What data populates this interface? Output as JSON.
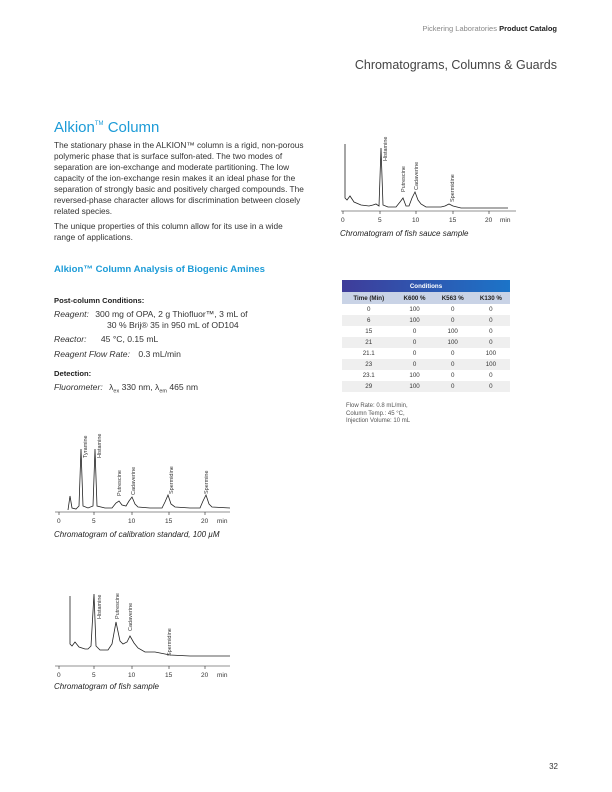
{
  "header": {
    "brand": "Pickering Laboratories",
    "catalog": "Product Catalog",
    "section": "Chromatograms, Columns & Guards"
  },
  "title": {
    "name": "Alkion",
    "tm": "TM",
    "suffix": " Column"
  },
  "intro": [
    "The stationary phase in the ALKION™ column is a rigid, non-porous polymeric phase that is surface sulfon-ated. The two modes of separation are ion-exchange and moderate partitioning. The low capacity of the ion-exchange resin makes it an ideal phase for the separation of strongly basic and positively charged compounds. The reversed-phase character allows for discrimination between closely related species.",
    "The unique properties of this column allow for its use in a wide range of applications."
  ],
  "analysis": {
    "heading": "Alkion™ Column Analysis of Biogenic Amines",
    "postcolumn_label": "Post-column Conditions:",
    "reagent_label": "Reagent:",
    "reagent_line1": "300 mg of OPA, 2 g Thiofluor™, 3 mL of",
    "reagent_line2": "30 % Brij® 35 in 950 mL of OD104",
    "reactor_label": "Reactor:",
    "reactor_value": "45 °C, 0.15 mL",
    "flow_label": "Reagent Flow Rate:",
    "flow_value": "0.3 mL/min",
    "detection_label": "Detection:",
    "fluorometer_label": "Fluorometer:",
    "lambda": "λ",
    "ex_sub": "ex",
    "ex_value": " 330 nm, ",
    "em_sub": "em",
    "em_value": " 465 nm"
  },
  "conditions_table": {
    "caption": "Conditions",
    "headers": [
      "Time (Min)",
      "K600 %",
      "K563 %",
      "K130 %"
    ],
    "rows": [
      [
        "0",
        "100",
        "0",
        "0"
      ],
      [
        "6",
        "100",
        "0",
        "0"
      ],
      [
        "15",
        "0",
        "100",
        "0"
      ],
      [
        "21",
        "0",
        "100",
        "0"
      ],
      [
        "21.1",
        "0",
        "0",
        "100"
      ],
      [
        "23",
        "0",
        "0",
        "100"
      ],
      [
        "23.1",
        "100",
        "0",
        "0"
      ],
      [
        "29",
        "100",
        "0",
        "0"
      ]
    ],
    "notes": [
      "Flow Rate: 0.8 mL/min,",
      "Column Temp.: 45 °C,",
      "Injection Volume: 10 mL"
    ]
  },
  "chromatograms": {
    "fish_sauce": {
      "caption": "Chromatogram of fish sauce sample",
      "ticks": [
        "0",
        "5",
        "10",
        "15",
        "20"
      ],
      "unit": "min",
      "peaks": [
        "Histamine",
        "Putrescine",
        "Cadaverine",
        "Spermidine"
      ]
    },
    "calibration": {
      "caption": "Chromatogram of calibration standard, 100 µM",
      "ticks": [
        "0",
        "5",
        "10",
        "15",
        "20"
      ],
      "unit": "min",
      "peaks": [
        "Tyramine",
        "Histamine",
        "Putrescine",
        "Cadaverine",
        "Spermidine",
        "Spermine"
      ]
    },
    "fish": {
      "caption": "Chromatogram of fish sample",
      "ticks": [
        "0",
        "5",
        "10",
        "15",
        "20"
      ],
      "unit": "min",
      "peaks": [
        "Histamine",
        "Putrescine",
        "Cadaverine",
        "Spermidine"
      ]
    }
  },
  "page_number": "32"
}
